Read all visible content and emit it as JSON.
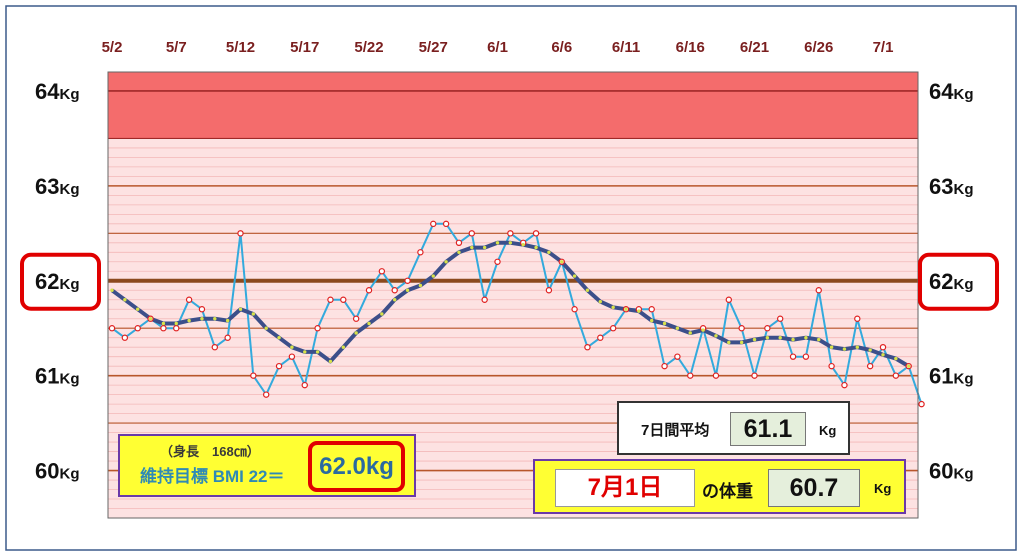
{
  "chart_data": {
    "type": "line",
    "ylim": [
      59.5,
      64.2
    ],
    "x_range": [
      "5/2",
      "7/1"
    ],
    "x_tick_labels": [
      "5/2",
      "5/7",
      "5/12",
      "5/17",
      "5/22",
      "5/27",
      "6/1",
      "6/6",
      "6/11",
      "6/16",
      "6/21",
      "6/26",
      "7/1"
    ],
    "y_tick_labels_left": [
      {
        "value": 64,
        "num": "64",
        "unit": "Kg"
      },
      {
        "value": 63,
        "num": "63",
        "unit": "Kg"
      },
      {
        "value": 62,
        "num": "62",
        "unit": "Kg"
      },
      {
        "value": 61,
        "num": "61",
        "unit": "Kg"
      },
      {
        "value": 60,
        "num": "60",
        "unit": "Kg"
      }
    ],
    "y_tick_labels_right": [
      {
        "value": 64,
        "num": "64",
        "unit": "Kg"
      },
      {
        "value": 63,
        "num": "63",
        "unit": "Kg"
      },
      {
        "value": 62,
        "num": "62",
        "unit": "Kg"
      },
      {
        "value": 61,
        "num": "61",
        "unit": "Kg"
      },
      {
        "value": 60,
        "num": "60",
        "unit": "Kg"
      }
    ],
    "highlighted_tick": 62,
    "target_line": 62.0,
    "zones": [
      {
        "from": 63.5,
        "to": 64.2,
        "color": "#f46c6c"
      },
      {
        "from": 59.5,
        "to": 63.5,
        "color": "#fde2e2"
      }
    ],
    "series": [
      {
        "color": "#33aadd",
        "marker_color": "#e02020",
        "values": [
          61.5,
          61.4,
          61.5,
          61.6,
          61.5,
          61.5,
          61.8,
          61.7,
          61.3,
          61.4,
          62.5,
          61.0,
          60.8,
          61.1,
          61.2,
          60.9,
          61.5,
          61.8,
          61.8,
          61.6,
          61.9,
          62.1,
          61.9,
          62.0,
          62.3,
          62.6,
          62.6,
          62.4,
          62.5,
          61.8,
          62.2,
          62.5,
          62.4,
          62.5,
          61.9,
          62.2,
          61.7,
          61.3,
          61.4,
          61.5,
          61.7,
          61.7,
          61.7,
          61.1,
          61.2,
          61.0,
          61.5,
          61.0,
          61.8,
          61.5,
          61.0,
          61.5,
          61.6,
          61.2,
          61.2,
          61.9,
          61.1,
          60.9,
          61.6,
          61.1,
          61.3,
          61.0,
          61.1,
          60.7
        ]
      },
      {
        "color": "#3c4f8a",
        "marker_color": "#d7e24a",
        "values": [
          61.9,
          61.8,
          61.7,
          61.6,
          61.55,
          61.55,
          61.58,
          61.6,
          61.6,
          61.58,
          61.7,
          61.65,
          61.5,
          61.4,
          61.3,
          61.25,
          61.25,
          61.15,
          61.3,
          61.45,
          61.55,
          61.65,
          61.8,
          61.9,
          61.95,
          62.05,
          62.2,
          62.3,
          62.35,
          62.35,
          62.4,
          62.4,
          62.38,
          62.35,
          62.3,
          62.2,
          62.05,
          61.9,
          61.78,
          61.72,
          61.7,
          61.68,
          61.58,
          61.55,
          61.5,
          61.45,
          61.48,
          61.42,
          61.35,
          61.35,
          61.38,
          61.4,
          61.4,
          61.38,
          61.4,
          61.38,
          61.3,
          61.28,
          61.3,
          61.27,
          61.22,
          61.18,
          61.1
        ]
      }
    ]
  },
  "avg_box": {
    "label": "7日間平均",
    "value": "61.1",
    "unit": "Kg"
  },
  "bmi_box": {
    "height_text": "（身長　168㎝）",
    "target_text": "維持目標 BMI 22＝",
    "value": "62.0kg"
  },
  "today_box": {
    "date": "7月1日",
    "label": "の体重",
    "value": "60.7",
    "unit": "Kg"
  },
  "colors": {
    "frame": "#3c5a8a",
    "zone_red": "#f46c6c",
    "zone_pink": "#fde2e2",
    "grid_brown": "#b8562b",
    "target_line": "#8c4a1e",
    "highlight": "#e00000"
  }
}
